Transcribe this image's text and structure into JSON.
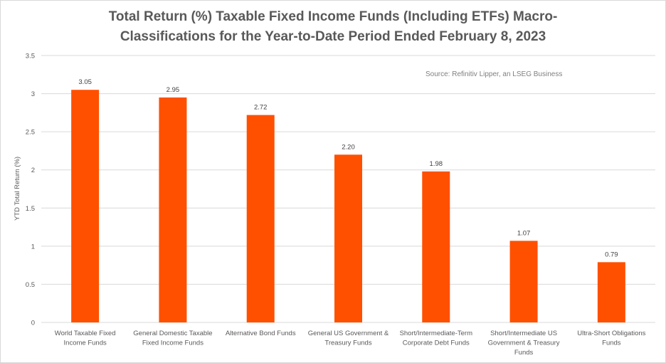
{
  "chart_data": {
    "type": "bar",
    "title_lines": [
      "Total Return (%) Taxable Fixed Income Funds (Including ETFs) Macro-",
      "Classifications for the Year-to-Date Period Ended February 8, 2023"
    ],
    "title": "Total Return (%) Taxable Fixed Income Funds (Including ETFs) Macro-Classifications for the Year-to-Date Period Ended February 8, 2023",
    "annotation": "Source: Refinitiv Lipper, an LSEG Business",
    "xlabel": "",
    "ylabel": "YTD Total Return (%)",
    "ylim": [
      0,
      3.5
    ],
    "yticks": [
      "0",
      "0.5",
      "1",
      "1.5",
      "2",
      "2.5",
      "3",
      "3.5"
    ],
    "ytick_values": [
      0,
      0.5,
      1,
      1.5,
      2,
      2.5,
      3,
      3.5
    ],
    "grid": true,
    "bar_color": "#ff5000",
    "categories": [
      [
        "World Taxable Fixed",
        "Income Funds"
      ],
      [
        "General Domestic Taxable",
        "Fixed Income Funds"
      ],
      [
        "Alternative Bond Funds"
      ],
      [
        "General US Government &",
        "Treasury Funds"
      ],
      [
        "Short/Intermediate-Term",
        "Corporate Debt Funds"
      ],
      [
        "Short/Intermediate US",
        "Government & Treasury",
        "Funds"
      ],
      [
        "Ultra-Short Obligations",
        "Funds"
      ]
    ],
    "values": [
      3.05,
      2.95,
      2.72,
      2.2,
      1.98,
      1.07,
      0.79
    ],
    "data_labels": [
      "3.05",
      "2.95",
      "2.72",
      "2.20",
      "1.98",
      "1.07",
      "0.79"
    ]
  }
}
